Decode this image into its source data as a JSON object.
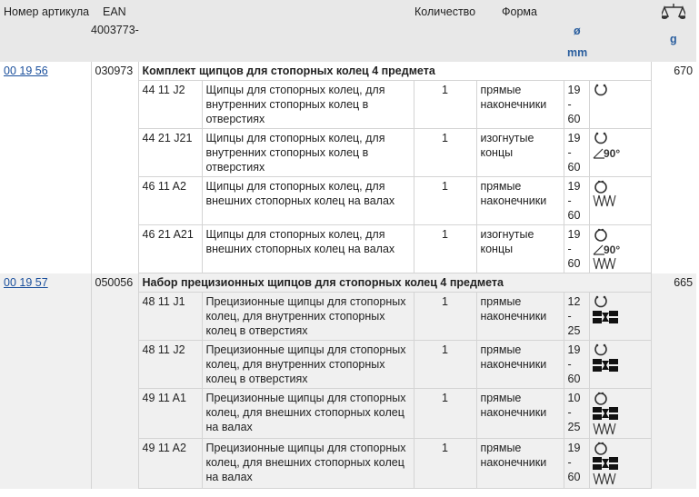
{
  "header": {
    "article": "Номер артикула",
    "ean": "EAN",
    "ean_prefix": "4003773-",
    "quantity": "Количество",
    "form": "Форма",
    "diameter_symbol": "ø",
    "diameter_unit": "mm",
    "weight_icon": "scales-icon",
    "weight_unit": "g"
  },
  "groups": [
    {
      "article": "00 19 56",
      "ean": "030973",
      "title": "Комплект щипцов для стопорных колец 4 предмета",
      "weight": "670",
      "items": [
        {
          "code": "44 11 J2",
          "desc": "Щипцы для стопорных колец, для внутренних стопорных колец в отверстиях",
          "qty": "1",
          "form": "прямые наконечники",
          "range": "19 - 60",
          "icons": [
            "internal-ring"
          ]
        },
        {
          "code": "44 21 J21",
          "desc": "Щипцы для стопорных колец, для внутренних стопорных колец в отверстиях",
          "qty": "1",
          "form": "изогнутые концы",
          "range": "19 - 60",
          "icons": [
            "internal-ring",
            "angle-90"
          ]
        },
        {
          "code": "46 11 A2",
          "desc": "Щипцы для стопорных колец, для внешних стопорных колец на валах",
          "qty": "1",
          "form": "прямые наконечники",
          "range": "19 - 60",
          "icons": [
            "external-ring",
            "shaft"
          ]
        },
        {
          "code": "46 21 A21",
          "desc": "Щипцы для стопорных колец, для внешних стопорных колец на валах",
          "qty": "1",
          "form": "изогнутые концы",
          "range": "19 - 60",
          "icons": [
            "external-ring",
            "angle-90",
            "shaft"
          ]
        }
      ]
    },
    {
      "article": "00 19 57",
      "ean": "050056",
      "title": "Набор прецизионных щипцов для стопорных колец 4 предмета",
      "weight": "665",
      "items": [
        {
          "code": "48 11 J1",
          "desc": "Прецизионные щипцы для стопорных колец, для внутренних стопорных колец в отверстиях",
          "qty": "1",
          "form": "прямые наконечники",
          "range": "12 - 25",
          "icons": [
            "internal-ring",
            "precision-tip"
          ]
        },
        {
          "code": "48 11 J2",
          "desc": "Прецизионные щипцы для стопорных колец, для внутренних стопорных колец в отверстиях",
          "qty": "1",
          "form": "прямые наконечники",
          "range": "19 - 60",
          "icons": [
            "internal-ring",
            "precision-tip"
          ]
        },
        {
          "code": "49 11 A1",
          "desc": "Прецизионные щипцы для стопорных колец, для внешних стопорных колец на валах",
          "qty": "1",
          "form": "прямые наконечники",
          "range": "10 - 25",
          "icons": [
            "external-ring",
            "precision-tip",
            "shaft"
          ]
        },
        {
          "code": "49 11 A2",
          "desc": "Прецизионные щипцы для стопорных колец, для внешних стопорных колец на валах",
          "qty": "1",
          "form": "прямые наконечники",
          "range": "19 - 60",
          "icons": [
            "external-ring",
            "precision-tip",
            "shaft"
          ]
        }
      ]
    }
  ],
  "angle_label": "90°"
}
